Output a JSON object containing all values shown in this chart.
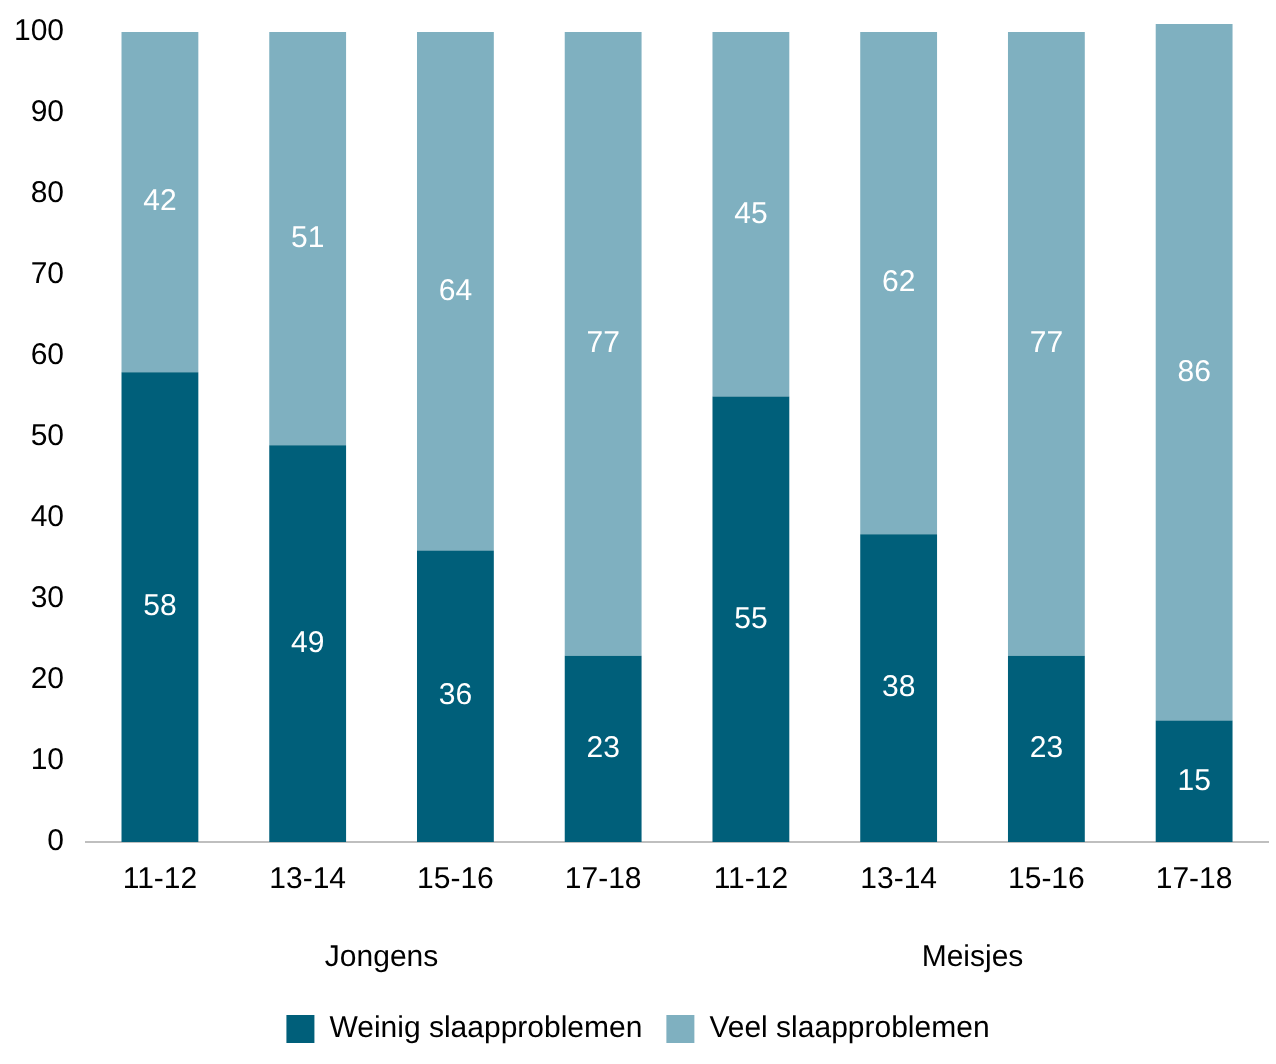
{
  "chart_data": {
    "type": "bar",
    "stacked": true,
    "categories": [
      "11-12",
      "13-14",
      "15-16",
      "17-18",
      "11-12",
      "13-14",
      "15-16",
      "17-18"
    ],
    "series": [
      {
        "name": "Weinig slaapproblemen",
        "color": "#005f7a",
        "values": [
          58,
          49,
          36,
          23,
          55,
          38,
          23,
          15
        ]
      },
      {
        "name": "Veel slaapproblemen",
        "color": "#7fb0c0",
        "values": [
          42,
          51,
          64,
          77,
          45,
          62,
          77,
          86
        ]
      }
    ],
    "ylim": [
      0,
      101
    ],
    "yticks": [
      0,
      10,
      20,
      30,
      40,
      50,
      60,
      70,
      80,
      90,
      100
    ],
    "grid": false,
    "legend": "bottom",
    "data_labels": true,
    "annotations": [
      "Jongens",
      "Meisjes"
    ]
  }
}
